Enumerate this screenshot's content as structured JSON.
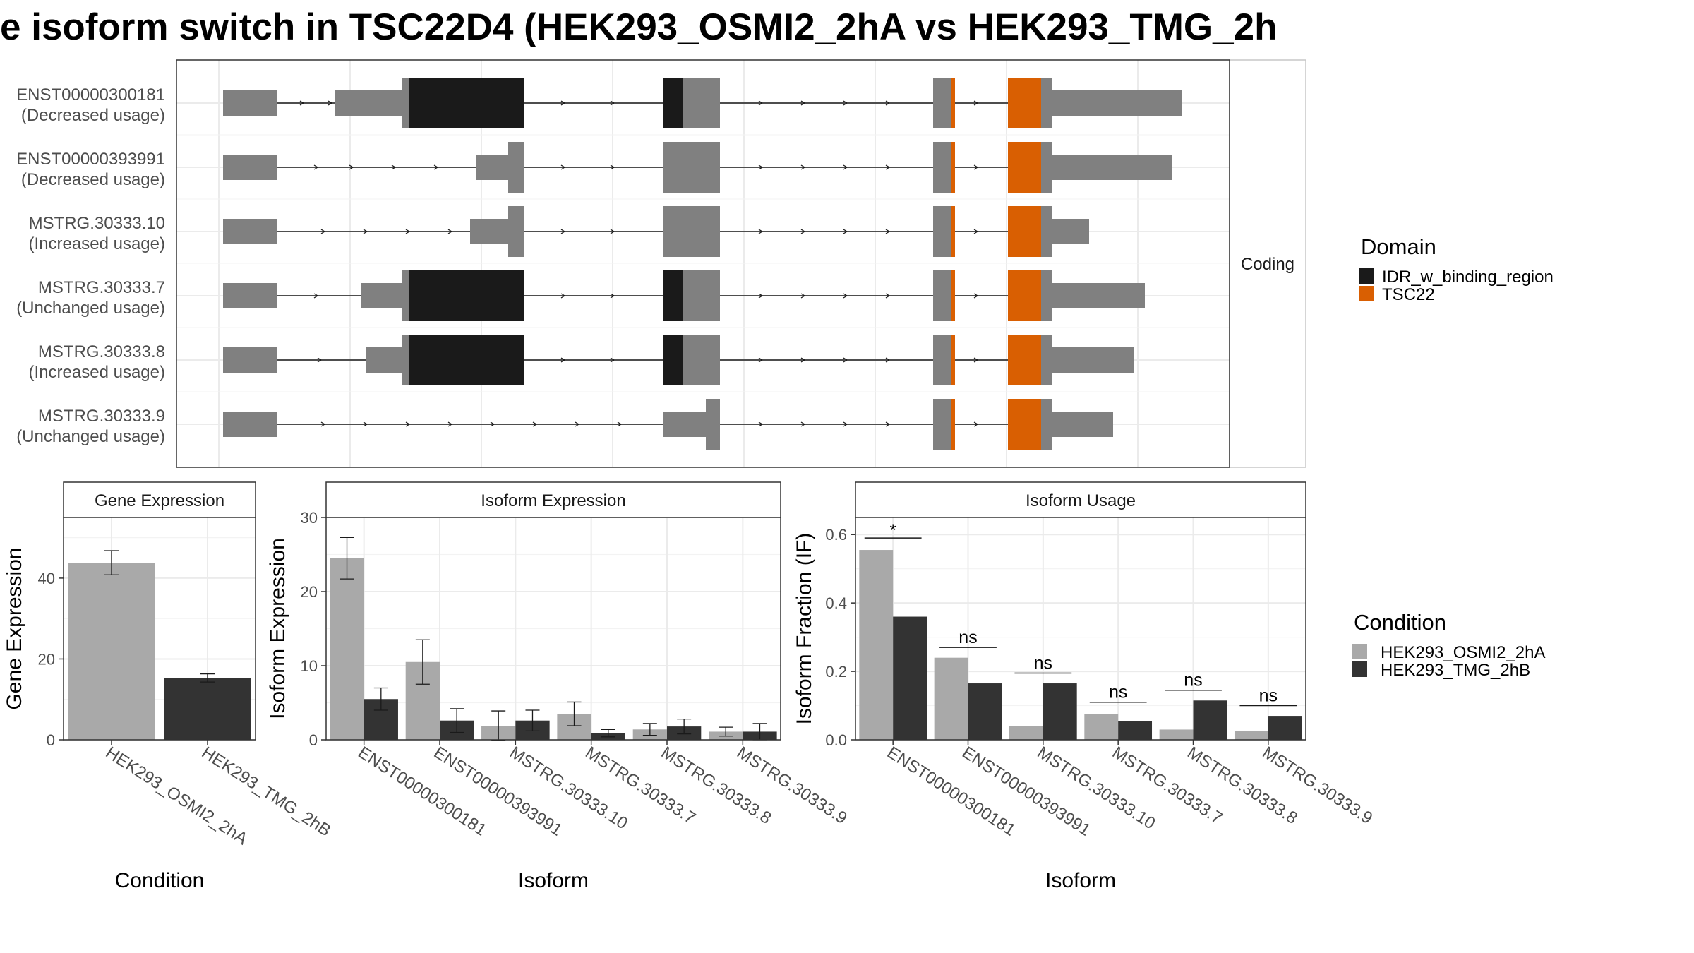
{
  "title": "e isoform switch in TSC22D4 (HEK293_OSMI2_2hA vs HEK293_TMG_2h",
  "colors": {
    "cond_a": "#a9a9a9",
    "cond_b": "#333333",
    "exon": "#808080",
    "idr": "#1a1a1a",
    "tsc22": "#d95f02"
  },
  "chart_data": [
    {
      "type": "gene-structure",
      "facet_label": "Coding",
      "isoforms": [
        {
          "id": "ENST00000300181",
          "label": "ENST00000300181",
          "sublabel": "(Decreased usage)"
        },
        {
          "id": "ENST00000393991",
          "label": "ENST00000393991",
          "sublabel": "(Decreased usage)"
        },
        {
          "id": "MSTRG.30333.10",
          "label": "MSTRG.30333.10",
          "sublabel": "(Increased usage)"
        },
        {
          "id": "MSTRG.30333.7",
          "label": "MSTRG.30333.7",
          "sublabel": "(Unchanged usage)"
        },
        {
          "id": "MSTRG.30333.8",
          "label": "MSTRG.30333.8",
          "sublabel": "(Increased usage)"
        },
        {
          "id": "MSTRG.30333.9",
          "label": "MSTRG.30333.9",
          "sublabel": "(Unchanged usage)"
        }
      ],
      "legend": {
        "title": "Domain",
        "items": [
          {
            "name": "IDR_w_binding_region",
            "color": "#1a1a1a"
          },
          {
            "name": "TSC22",
            "color": "#d95f02"
          }
        ]
      }
    },
    {
      "type": "bar",
      "strip": "Gene Expression",
      "xlabel": "Condition",
      "ylabel": "Gene Expression",
      "ylim": [
        0,
        55
      ],
      "yticks": [
        0,
        20,
        40
      ],
      "categories": [
        "HEK293_OSMI2_2hA",
        "HEK293_TMG_2hB"
      ],
      "values": [
        43.8,
        15.3
      ],
      "errors": [
        3.0,
        1.0
      ]
    },
    {
      "type": "bar",
      "strip": "Isoform Expression",
      "xlabel": "Isoform",
      "ylabel": "Isoform Expression",
      "ylim": [
        0,
        30
      ],
      "yticks": [
        0,
        10,
        20,
        30
      ],
      "categories": [
        "ENST00000300181",
        "ENST00000393991",
        "MSTRG.30333.10",
        "MSTRG.30333.7",
        "MSTRG.30333.8",
        "MSTRG.30333.9"
      ],
      "series": [
        {
          "name": "HEK293_OSMI2_2hA",
          "values": [
            24.5,
            10.5,
            1.9,
            3.5,
            1.4,
            1.1
          ],
          "errors": [
            2.8,
            3.0,
            2.0,
            1.6,
            0.8,
            0.6
          ]
        },
        {
          "name": "HEK293_TMG_2hB",
          "values": [
            5.5,
            2.6,
            2.6,
            0.9,
            1.8,
            1.1
          ],
          "errors": [
            1.5,
            1.6,
            1.4,
            0.5,
            1.0,
            1.1
          ]
        }
      ]
    },
    {
      "type": "bar",
      "strip": "Isoform Usage",
      "xlabel": "Isoform",
      "ylabel": "Isoform Fraction (IF)",
      "ylim": [
        0,
        0.65
      ],
      "yticks": [
        0.0,
        0.2,
        0.4,
        0.6
      ],
      "categories": [
        "ENST00000300181",
        "ENST00000393991",
        "MSTRG.30333.10",
        "MSTRG.30333.7",
        "MSTRG.30333.8",
        "MSTRG.30333.9"
      ],
      "series": [
        {
          "name": "HEK293_OSMI2_2hA",
          "values": [
            0.555,
            0.24,
            0.04,
            0.075,
            0.03,
            0.025
          ]
        },
        {
          "name": "HEK293_TMG_2hB",
          "values": [
            0.36,
            0.165,
            0.165,
            0.055,
            0.115,
            0.07
          ]
        }
      ],
      "significance": [
        "*",
        "ns",
        "ns",
        "ns",
        "ns",
        "ns"
      ],
      "significance_levels": [
        0.59,
        0.27,
        0.195,
        0.11,
        0.145,
        0.1
      ]
    }
  ],
  "condition_legend": {
    "title": "Condition",
    "items": [
      {
        "name": "HEK293_OSMI2_2hA",
        "color": "#a9a9a9"
      },
      {
        "name": "HEK293_TMG_2hB",
        "color": "#333333"
      }
    ]
  }
}
